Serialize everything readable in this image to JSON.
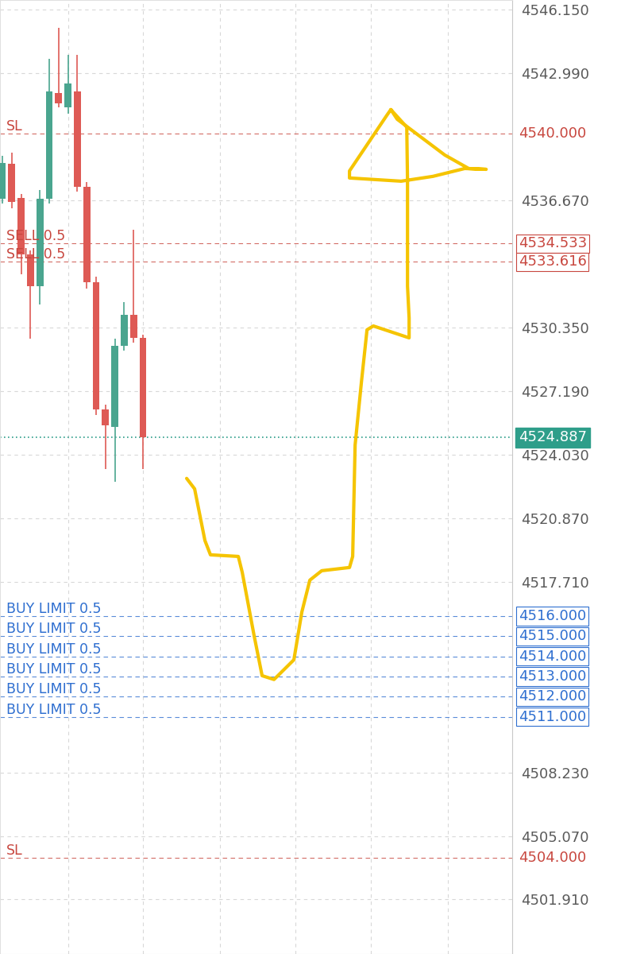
{
  "chart_data": {
    "type": "candlestick",
    "x": [
      0,
      1,
      2,
      3,
      4,
      5,
      6,
      7,
      8,
      9,
      10,
      11,
      12,
      13,
      14,
      15
    ],
    "open": [
      4536.76,
      4538.5,
      4536.8,
      4534.0,
      4532.4,
      4536.76,
      4542.0,
      4541.3,
      4542.1,
      4537.35,
      4532.6,
      4526.3,
      4525.4,
      4529.45,
      4531.0,
      4529.85
    ],
    "high": [
      4538.9,
      4539.05,
      4537.0,
      4534.2,
      4537.2,
      4543.7,
      4545.26,
      4543.9,
      4543.9,
      4537.6,
      4532.9,
      4526.5,
      4529.8,
      4531.6,
      4535.2,
      4530.0
    ],
    "low": [
      4536.5,
      4536.3,
      4533.0,
      4529.8,
      4531.5,
      4536.5,
      4541.3,
      4541.0,
      4537.1,
      4532.3,
      4526.0,
      4523.3,
      4522.7,
      4529.2,
      4529.6,
      4523.3
    ],
    "close": [
      4538.54,
      4536.6,
      4534.0,
      4532.4,
      4536.76,
      4542.1,
      4541.5,
      4542.5,
      4537.35,
      4532.6,
      4526.3,
      4525.5,
      4529.45,
      4531.0,
      4529.85,
      4524.887
    ],
    "colors": [
      "#4aa58f",
      "#de5a55",
      "#de5a55",
      "#de5a55",
      "#4aa58f",
      "#4aa58f",
      "#de5a55",
      "#4aa58f",
      "#de5a55",
      "#de5a55",
      "#de5a55",
      "#de5a55",
      "#4aa58f",
      "#4aa58f",
      "#de5a55",
      "#de5a55"
    ],
    "xlim": [
      -0.25,
      54.4
    ],
    "xticks": [
      7,
      15,
      23.2,
      31.3,
      39.3,
      47.5
    ],
    "ylim": [
      4499.2,
      4546.64
    ],
    "yticks": [
      {
        "value": 4546.15,
        "label": "4546.150"
      },
      {
        "value": 4542.99,
        "label": "4542.990"
      },
      {
        "value": 4536.67,
        "label": "4536.670"
      },
      {
        "value": 4530.35,
        "label": "4530.350"
      },
      {
        "value": 4527.19,
        "label": "4527.190"
      },
      {
        "value": 4524.03,
        "label": "4524.030"
      },
      {
        "value": 4520.87,
        "label": "4520.870"
      },
      {
        "value": 4517.71,
        "label": "4517.710"
      },
      {
        "value": 4508.23,
        "label": "4508.230"
      },
      {
        "value": 4505.07,
        "label": "4505.070"
      },
      {
        "value": 4501.91,
        "label": "4501.910"
      }
    ],
    "grid": true,
    "tick_labels": "y",
    "current_price": {
      "value": 4524.887,
      "label": "4524.887",
      "color": "#2e9e8a"
    },
    "stop_losses": {
      "color": "#c8473f",
      "orders": [
        {
          "price": 4540,
          "price_label": "4540.000",
          "label": "SL"
        },
        {
          "price": 4504,
          "price_label": "4504.000",
          "label": "SL"
        }
      ]
    },
    "sell_orders": {
      "color": "#c8473f",
      "orders": [
        {
          "price": 4534.533,
          "label": "SELL 0.5"
        },
        {
          "price": 4533.616,
          "label": "SELL 0.5"
        }
      ]
    },
    "buy_limits": {
      "color": "#2f6fd0",
      "orders": [
        {
          "price": 4516,
          "price_label": "4516.000",
          "label": "BUY LIMIT 0.5"
        },
        {
          "price": 4515,
          "price_label": "4515.000",
          "label": "BUY LIMIT 0.5"
        },
        {
          "price": 4514,
          "price_label": "4514.000",
          "label": "BUY LIMIT 0.5"
        },
        {
          "price": 4513,
          "price_label": "4513.000",
          "label": "BUY LIMIT 0.5"
        },
        {
          "price": 4512,
          "price_label": "4512.000",
          "label": "BUY LIMIT 0.5"
        },
        {
          "price": 4511,
          "price_label": "4511.000",
          "label": "BUY LIMIT 0.5"
        }
      ]
    },
    "drawing": {
      "color": "#f5c400",
      "x": [
        19.66,
        20.51,
        21.61,
        22.2,
        25.17,
        25.59,
        26.86,
        27.71,
        28.98,
        31.1,
        31.95,
        32.8,
        34.07,
        37.03,
        37.37,
        37.63,
        38.31,
        38.9,
        39.58,
        43.39,
        43.39,
        43.22,
        43.22,
        43.14,
        41.44,
        42.12,
        47.2,
        49.75,
        51.61,
        49.32,
        45.93,
        42.54,
        37.03,
        37.03,
        41.02,
        41.44
      ],
      "y": [
        4522.85,
        4522.33,
        4519.76,
        4519.05,
        4518.97,
        4518.18,
        4515.02,
        4513.04,
        4512.85,
        4513.83,
        4516.21,
        4517.79,
        4518.26,
        4518.42,
        4518.97,
        4524.51,
        4527.67,
        4530.24,
        4530.43,
        4529.84,
        4530.83,
        4532.41,
        4537.63,
        4540.32,
        4541.19,
        4540.71,
        4538.93,
        4538.26,
        4538.22,
        4538.26,
        4537.87,
        4537.63,
        4537.79,
        4538.14,
        4540.91,
        4541.19
      ]
    }
  }
}
